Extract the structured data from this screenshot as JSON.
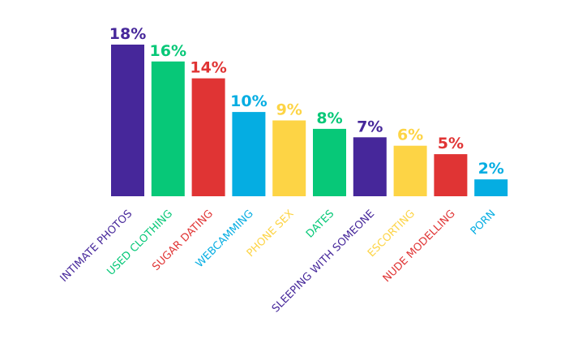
{
  "chart_data": {
    "type": "bar",
    "categories": [
      "INTIMATE PHOTOS",
      "USED CLOTHING",
      "SUGAR DATING",
      "WEBCAMMING",
      "PHONE SEX",
      "DATES",
      "SLEEPING WITH SOMEONE",
      "ESCORTING",
      "NUDE MODELLING",
      "PORN"
    ],
    "values": [
      18,
      16,
      14,
      10,
      9,
      8,
      7,
      6,
      5,
      2
    ],
    "value_labels": [
      "18%",
      "16%",
      "14%",
      "10%",
      "9%",
      "8%",
      "7%",
      "6%",
      "5%",
      "2%"
    ],
    "colors": [
      "#46279a",
      "#07c878",
      "#e03434",
      "#05ade2",
      "#fdd445",
      "#07c878",
      "#46279a",
      "#fdd445",
      "#e03434",
      "#05ade2"
    ],
    "title": "",
    "xlabel": "",
    "ylabel": "",
    "ylim": [
      0,
      18
    ],
    "grid": false,
    "legend": "none"
  }
}
